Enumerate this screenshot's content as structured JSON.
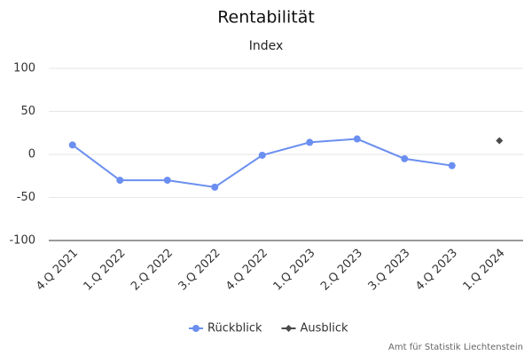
{
  "chart_data": {
    "type": "line",
    "title": "Rentabilität",
    "subtitle": "Index",
    "categories": [
      "4.Q 2021",
      "1.Q 2022",
      "2.Q 2022",
      "3.Q 2022",
      "4.Q 2022",
      "1.Q 2023",
      "2.Q 2023",
      "3.Q 2023",
      "4.Q 2023",
      "1.Q 2024"
    ],
    "series": [
      {
        "name": "Rückblick",
        "color": "#6b8ff0",
        "marker": "circle",
        "values": [
          11,
          -30,
          -30,
          -38,
          -1,
          14,
          18,
          -5,
          -13,
          null
        ]
      },
      {
        "name": "Ausblick",
        "color": "#4a4a4a",
        "marker": "diamond",
        "values": [
          null,
          null,
          null,
          null,
          null,
          null,
          null,
          null,
          null,
          16
        ]
      }
    ],
    "ylim": [
      -100,
      100
    ],
    "yticks": [
      -100,
      -50,
      0,
      50,
      100
    ],
    "grid": true,
    "legend": "bottom",
    "credit": "Amt für Statistik Liechtenstein"
  }
}
